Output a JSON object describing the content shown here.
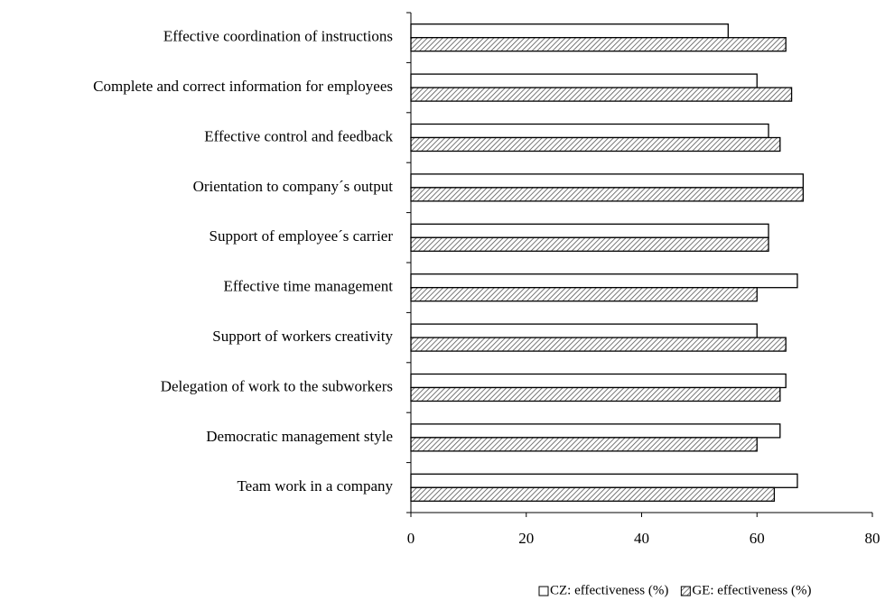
{
  "chart_data": {
    "type": "barh",
    "categories": [
      "Effective coordination of instructions",
      "Complete and correct information for employees",
      "Effective control and feedback",
      "Orientation to company´s output",
      "Support of employee´s carrier",
      "Effective time management",
      "Support of workers creativity",
      "Delegation of work to the subworkers",
      "Democratic management style",
      "Team work in a company"
    ],
    "series": [
      {
        "name": "CZ: effectiveness (%)",
        "color": "#ffffff",
        "hatch": false,
        "values": [
          55,
          60,
          62,
          68,
          62,
          67,
          60,
          65,
          64,
          67
        ]
      },
      {
        "name": "GE: effectiveness (%)",
        "color": "#ffffff",
        "hatch": true,
        "values": [
          65,
          66,
          64,
          68,
          62,
          60,
          65,
          64,
          60,
          63
        ]
      }
    ],
    "xlim": [
      0,
      80
    ],
    "xticks": [
      0,
      20,
      40,
      60,
      80
    ],
    "legend": "bottom-right"
  }
}
